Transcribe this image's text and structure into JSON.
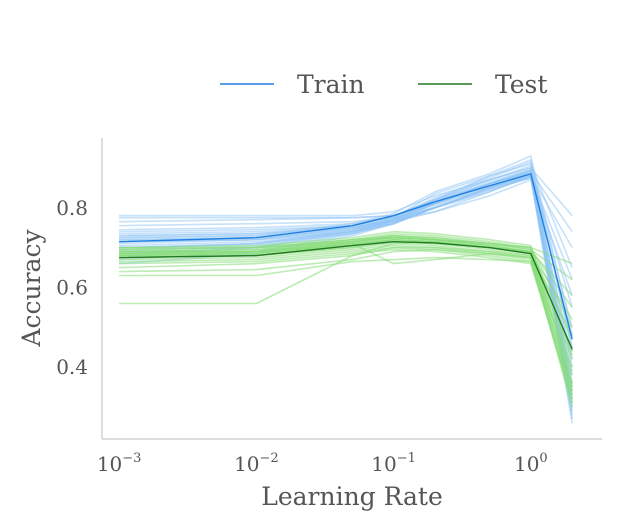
{
  "chart_data": {
    "type": "line",
    "xscale": "log",
    "xlabel": "Learning Rate",
    "ylabel": "Accuracy",
    "xlim": [
      0.00075,
      3.3
    ],
    "ylim": [
      0.22,
      0.975
    ],
    "x_ticks": [
      {
        "base": "10",
        "exp": "−3",
        "value": 0.001
      },
      {
        "base": "10",
        "exp": "−2",
        "value": 0.01
      },
      {
        "base": "10",
        "exp": "−1",
        "value": 0.1
      },
      {
        "base": "10",
        "exp": "0",
        "value": 1
      }
    ],
    "y_ticks": [
      {
        "label": "0.4",
        "value": 0.4
      },
      {
        "label": "0.6",
        "value": 0.6
      },
      {
        "label": "0.8",
        "value": 0.8
      }
    ],
    "x": [
      0.001,
      0.01,
      0.05,
      0.1,
      0.2,
      0.5,
      1.0,
      2.0
    ],
    "legend": {
      "placement": "top-center",
      "entries": [
        {
          "name": "Train",
          "color": "#1f7fe0"
        },
        {
          "name": "Test",
          "color": "#207a20"
        }
      ]
    },
    "series": [
      {
        "name": "Train",
        "kind": "mean",
        "color": "#1f7fe0",
        "values": [
          0.715,
          0.725,
          0.755,
          0.78,
          0.815,
          0.855,
          0.885,
          0.47
        ]
      },
      {
        "name": "Test",
        "kind": "mean",
        "color": "#207a20",
        "values": [
          0.675,
          0.68,
          0.705,
          0.715,
          0.712,
          0.7,
          0.685,
          0.445
        ]
      }
    ],
    "runs_style": {
      "Train": {
        "color": "#8ec3f5",
        "opacity": 0.5
      },
      "Test": {
        "color": "#86dc78",
        "opacity": 0.55
      }
    },
    "runs": {
      "Train": [
        [
          0.78,
          0.78,
          0.78,
          0.79,
          0.83,
          0.87,
          0.9,
          0.78
        ],
        [
          0.775,
          0.775,
          0.775,
          0.78,
          0.82,
          0.86,
          0.89,
          0.74
        ],
        [
          0.765,
          0.77,
          0.775,
          0.78,
          0.81,
          0.85,
          0.88,
          0.7
        ],
        [
          0.755,
          0.76,
          0.765,
          0.775,
          0.8,
          0.84,
          0.88,
          0.62
        ],
        [
          0.745,
          0.75,
          0.76,
          0.775,
          0.81,
          0.86,
          0.895,
          0.55
        ],
        [
          0.74,
          0.745,
          0.755,
          0.77,
          0.8,
          0.85,
          0.89,
          0.5
        ],
        [
          0.735,
          0.74,
          0.755,
          0.78,
          0.82,
          0.87,
          0.905,
          0.45
        ],
        [
          0.73,
          0.735,
          0.75,
          0.765,
          0.79,
          0.84,
          0.88,
          0.42
        ],
        [
          0.725,
          0.73,
          0.75,
          0.77,
          0.81,
          0.86,
          0.895,
          0.4
        ],
        [
          0.72,
          0.725,
          0.745,
          0.765,
          0.8,
          0.85,
          0.885,
          0.38
        ],
        [
          0.715,
          0.72,
          0.74,
          0.76,
          0.8,
          0.845,
          0.875,
          0.36
        ],
        [
          0.71,
          0.72,
          0.745,
          0.77,
          0.815,
          0.86,
          0.89,
          0.34
        ],
        [
          0.705,
          0.715,
          0.74,
          0.765,
          0.8,
          0.85,
          0.88,
          0.33
        ],
        [
          0.7,
          0.71,
          0.74,
          0.77,
          0.82,
          0.87,
          0.9,
          0.32
        ],
        [
          0.695,
          0.71,
          0.735,
          0.76,
          0.8,
          0.845,
          0.875,
          0.31
        ],
        [
          0.69,
          0.705,
          0.74,
          0.765,
          0.81,
          0.86,
          0.89,
          0.3
        ],
        [
          0.685,
          0.7,
          0.735,
          0.76,
          0.805,
          0.855,
          0.88,
          0.29
        ],
        [
          0.68,
          0.7,
          0.74,
          0.77,
          0.815,
          0.865,
          0.895,
          0.28
        ],
        [
          0.67,
          0.69,
          0.735,
          0.765,
          0.81,
          0.86,
          0.885,
          0.27
        ],
        [
          0.66,
          0.685,
          0.73,
          0.76,
          0.8,
          0.85,
          0.875,
          0.26
        ],
        [
          0.72,
          0.725,
          0.75,
          0.775,
          0.835,
          0.88,
          0.92,
          0.44
        ],
        [
          0.725,
          0.73,
          0.76,
          0.785,
          0.84,
          0.885,
          0.93,
          0.48
        ],
        [
          0.7,
          0.71,
          0.745,
          0.775,
          0.825,
          0.875,
          0.915,
          0.35
        ],
        [
          0.715,
          0.72,
          0.75,
          0.77,
          0.79,
          0.83,
          0.87,
          0.58
        ],
        [
          0.73,
          0.735,
          0.755,
          0.78,
          0.82,
          0.88,
          0.91,
          0.65
        ]
      ],
      "Test": [
        [
          0.7,
          0.7,
          0.72,
          0.735,
          0.73,
          0.715,
          0.7,
          0.66
        ],
        [
          0.695,
          0.7,
          0.715,
          0.73,
          0.725,
          0.71,
          0.695,
          0.62
        ],
        [
          0.69,
          0.695,
          0.72,
          0.725,
          0.72,
          0.705,
          0.69,
          0.58
        ],
        [
          0.685,
          0.69,
          0.715,
          0.73,
          0.725,
          0.71,
          0.695,
          0.55
        ],
        [
          0.68,
          0.685,
          0.71,
          0.72,
          0.715,
          0.7,
          0.685,
          0.52
        ],
        [
          0.69,
          0.69,
          0.715,
          0.725,
          0.72,
          0.71,
          0.7,
          0.5
        ],
        [
          0.685,
          0.69,
          0.705,
          0.72,
          0.715,
          0.7,
          0.69,
          0.47
        ],
        [
          0.68,
          0.685,
          0.71,
          0.725,
          0.72,
          0.705,
          0.69,
          0.44
        ],
        [
          0.675,
          0.68,
          0.705,
          0.715,
          0.71,
          0.7,
          0.685,
          0.42
        ],
        [
          0.695,
          0.7,
          0.72,
          0.73,
          0.72,
          0.705,
          0.69,
          0.4
        ],
        [
          0.69,
          0.69,
          0.71,
          0.72,
          0.715,
          0.7,
          0.685,
          0.38
        ],
        [
          0.68,
          0.68,
          0.7,
          0.715,
          0.71,
          0.695,
          0.68,
          0.36
        ],
        [
          0.675,
          0.68,
          0.7,
          0.71,
          0.705,
          0.69,
          0.675,
          0.35
        ],
        [
          0.67,
          0.675,
          0.695,
          0.705,
          0.7,
          0.685,
          0.67,
          0.34
        ],
        [
          0.665,
          0.67,
          0.69,
          0.7,
          0.695,
          0.68,
          0.665,
          0.33
        ],
        [
          0.66,
          0.665,
          0.685,
          0.695,
          0.69,
          0.675,
          0.66,
          0.32
        ],
        [
          0.65,
          0.66,
          0.68,
          0.7,
          0.7,
          0.69,
          0.68,
          0.31
        ],
        [
          0.64,
          0.645,
          0.67,
          0.69,
          0.695,
          0.685,
          0.675,
          0.3
        ],
        [
          0.63,
          0.63,
          0.665,
          0.67,
          0.675,
          0.67,
          0.665,
          0.32
        ],
        [
          0.56,
          0.56,
          0.68,
          0.71,
          0.715,
          0.7,
          0.69,
          0.34
        ],
        [
          0.7,
          0.705,
          0.725,
          0.74,
          0.735,
          0.72,
          0.705,
          0.36
        ],
        [
          0.68,
          0.69,
          0.71,
          0.66,
          0.67,
          0.685,
          0.675,
          0.39
        ],
        [
          0.69,
          0.695,
          0.715,
          0.725,
          0.72,
          0.71,
          0.7,
          0.43
        ],
        [
          0.685,
          0.685,
          0.705,
          0.72,
          0.715,
          0.7,
          0.685,
          0.48
        ]
      ]
    }
  }
}
